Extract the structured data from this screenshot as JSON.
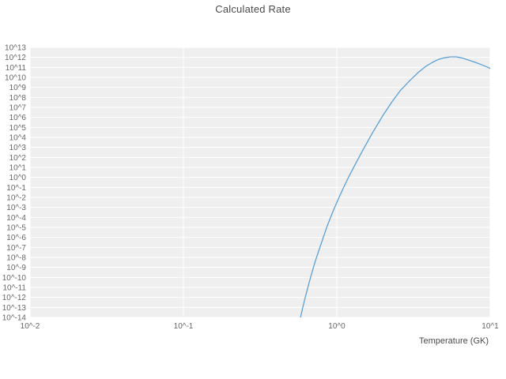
{
  "chart_data": {
    "type": "line",
    "title": "Calculated Rate",
    "xlabel": "Temperature (GK)",
    "ylabel": "",
    "x_scale": "log",
    "y_scale": "log",
    "xlim_exponents": [
      -2,
      1
    ],
    "ylim_exponents": [
      -14,
      13
    ],
    "x_ticks": [
      "10^-2",
      "10^-1",
      "10^0",
      "10^1"
    ],
    "y_ticks": [
      "10^13",
      "10^12",
      "10^11",
      "10^10",
      "10^9",
      "10^8",
      "10^7",
      "10^6",
      "10^5",
      "10^4",
      "10^3",
      "10^2",
      "10^1",
      "10^0",
      "10^-1",
      "10^-2",
      "10^-3",
      "10^-4",
      "10^-5",
      "10^-6",
      "10^-7",
      "10^-8",
      "10^-9",
      "10^-10",
      "10^-11",
      "10^-12",
      "10^-13",
      "10^-14"
    ],
    "grid": "on",
    "legend": "none",
    "colors": {
      "line": "#5ca0d3",
      "panel_bg": "#efefef",
      "gridline": "#ffffff",
      "tick_text": "#666666",
      "title_text": "#4a4a4a"
    },
    "series": [
      {
        "name": "calculated-rate",
        "points_T_log10rate": [
          [
            0.57,
            -14.6
          ],
          [
            0.58,
            -14.0
          ],
          [
            0.6,
            -13.0
          ],
          [
            0.62,
            -12.1
          ],
          [
            0.65,
            -10.9
          ],
          [
            0.68,
            -9.8
          ],
          [
            0.72,
            -8.5
          ],
          [
            0.76,
            -7.4
          ],
          [
            0.8,
            -6.4
          ],
          [
            0.85,
            -5.2
          ],
          [
            0.9,
            -4.2
          ],
          [
            0.95,
            -3.3
          ],
          [
            1.0,
            -2.5
          ],
          [
            1.1,
            -1.1
          ],
          [
            1.2,
            0.1
          ],
          [
            1.35,
            1.6
          ],
          [
            1.5,
            2.9
          ],
          [
            1.7,
            4.4
          ],
          [
            2.0,
            6.2
          ],
          [
            2.3,
            7.6
          ],
          [
            2.6,
            8.7
          ],
          [
            3.0,
            9.7
          ],
          [
            3.4,
            10.5
          ],
          [
            3.8,
            11.1
          ],
          [
            4.2,
            11.5
          ],
          [
            4.6,
            11.8
          ],
          [
            5.0,
            11.95
          ],
          [
            5.5,
            12.05
          ],
          [
            6.0,
            12.05
          ],
          [
            6.5,
            11.95
          ],
          [
            7.0,
            11.8
          ],
          [
            7.5,
            11.65
          ],
          [
            8.0,
            11.5
          ],
          [
            8.5,
            11.35
          ],
          [
            9.0,
            11.2
          ],
          [
            9.5,
            11.05
          ],
          [
            10.0,
            10.9
          ]
        ]
      }
    ]
  }
}
